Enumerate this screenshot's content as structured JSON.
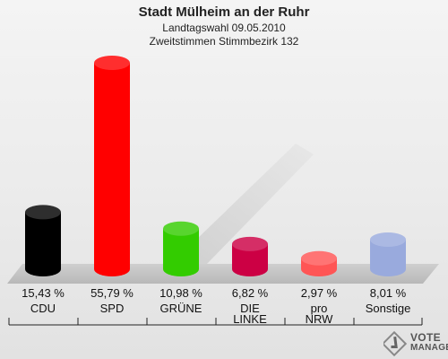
{
  "header": {
    "title": "Stadt Mülheim an der Ruhr",
    "subtitle": "Landtagswahl 09.05.2010",
    "subtitle2": "Zweitstimmen Stimmbezirk 132"
  },
  "chart_data": {
    "type": "bar",
    "title": "Stadt Mülheim an der Ruhr",
    "categories": [
      "CDU",
      "SPD",
      "GRÜNE",
      "DIE\nLINKE",
      "pro\nNRW",
      "Sonstige"
    ],
    "values": [
      15.43,
      55.79,
      10.98,
      6.82,
      2.97,
      8.01
    ],
    "value_labels": [
      "15,43 %",
      "55,79 %",
      "10,98 %",
      "6,82 %",
      "2,97 %",
      "8,01 %"
    ],
    "colors": [
      "#000000",
      "#ff0000",
      "#33cc00",
      "#cc0044",
      "#ff5555",
      "#99aadd"
    ],
    "xlabel": "",
    "ylabel": "",
    "grid": false,
    "legend": "none"
  },
  "logo": {
    "line1": "VOTE",
    "line2": "MANAGER"
  }
}
